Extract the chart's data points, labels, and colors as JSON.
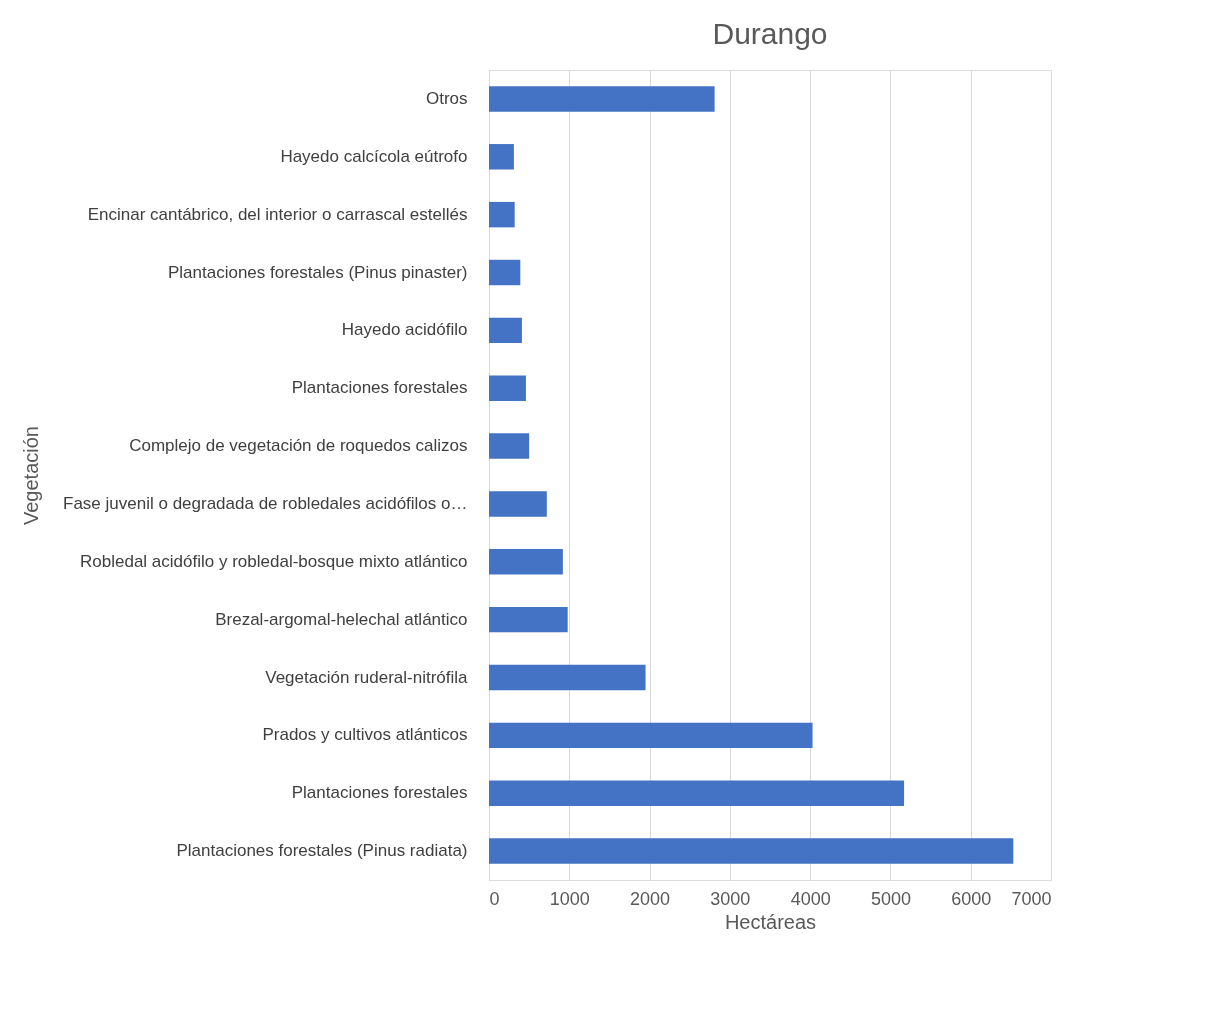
{
  "chart_data": {
    "type": "bar",
    "orientation": "horizontal",
    "title": "Durango",
    "xlabel": "Hectáreas",
    "ylabel": "Vegetación",
    "categories": [
      "Otros",
      "Hayedo calcícola eútrofo",
      "Encinar cantábrico, del interior o carrascal estellés",
      "Plantaciones forestales (Pinus pinaster)",
      "Hayedo acidófilo",
      "Plantaciones forestales",
      "Complejo de vegetación de roquedos calizos",
      "Fase juvenil o degradada de robledales acidófilos o…",
      "Robledal acidófilo y robledal-bosque mixto atlántico",
      "Brezal-argomal-helechal atlántico",
      "Vegetación ruderal-nitrófila",
      "Prados y cultivos atlánticos",
      "Plantaciones forestales",
      "Plantaciones forestales (Pinus radiata)"
    ],
    "values": [
      2810,
      310,
      320,
      390,
      410,
      460,
      500,
      720,
      920,
      980,
      1950,
      4030,
      5170,
      6530
    ],
    "color": "#4472c4",
    "xlim": [
      0,
      7000
    ],
    "xticks": [
      0,
      1000,
      2000,
      3000,
      4000,
      5000,
      6000,
      7000
    ],
    "grid": "x"
  }
}
